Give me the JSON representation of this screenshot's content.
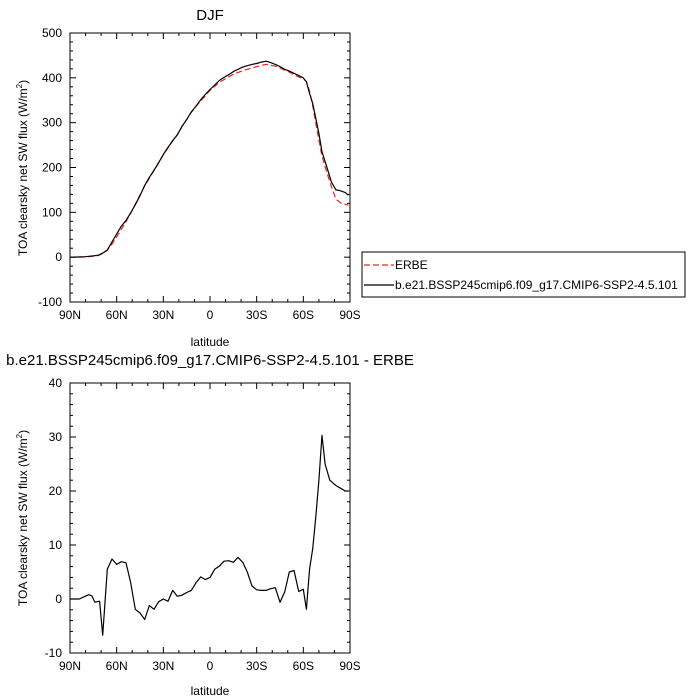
{
  "chart_data": [
    {
      "type": "line",
      "title": "DJF",
      "xlabel": "latitude",
      "ylabel": "TOA clearsky net SW flux (W/m",
      "ylabel_sup": "2",
      "ylabel_close": ")",
      "xlim": [
        90,
        -90
      ],
      "ylim": [
        -100,
        500
      ],
      "xticks": [
        90,
        60,
        30,
        0,
        -30,
        -60,
        -90
      ],
      "xtick_labels": [
        "90N",
        "60N",
        "30N",
        "0",
        "30S",
        "60S",
        "90S"
      ],
      "yticks": [
        -100,
        0,
        100,
        200,
        300,
        400,
        500
      ],
      "ytick_labels": [
        "-100",
        "0",
        "100",
        "200",
        "300",
        "400",
        "500"
      ],
      "legend_position": "right-outside",
      "series": [
        {
          "name": "ERBE",
          "color": "#e8261f",
          "dash": true,
          "x": [
            90,
            85,
            80,
            75,
            72,
            69,
            66,
            63,
            60,
            57,
            54,
            51,
            48,
            45,
            42,
            39,
            36,
            33,
            30,
            27,
            24,
            21,
            18,
            15,
            12,
            9,
            6,
            3,
            0,
            -3,
            -6,
            -9,
            -12,
            -15,
            -18,
            -21,
            -24,
            -27,
            -30,
            -33,
            -36,
            -39,
            -42,
            -45,
            -48,
            -51,
            -54,
            -57,
            -60,
            -62,
            -64,
            -66,
            -68,
            -70,
            -72,
            -75,
            -78,
            -81,
            -84,
            -87,
            -89
          ],
          "y": [
            0,
            0,
            0.5,
            2,
            4,
            8,
            16,
            29,
            45,
            62,
            79,
            98,
            118,
            139,
            159,
            176,
            193,
            210,
            228,
            244,
            259,
            273,
            291,
            307,
            323,
            336,
            349,
            360,
            372,
            381,
            390,
            396,
            402,
            408,
            412,
            416,
            419,
            422,
            425,
            428,
            430,
            428,
            426,
            422,
            417,
            413,
            407,
            402,
            398,
            392,
            370,
            338,
            299,
            261,
            225,
            190,
            158,
            129,
            121,
            118,
            116
          ]
        },
        {
          "name": "b.e21.BSSP245cmip6.f09_g17.CMIP6-SSP2-4.5.101",
          "color": "#000000",
          "dash": false,
          "x": [
            90,
            85,
            80,
            75,
            72,
            69,
            66,
            63,
            60,
            57,
            54,
            51,
            48,
            45,
            42,
            39,
            36,
            33,
            30,
            27,
            24,
            21,
            18,
            15,
            12,
            9,
            6,
            3,
            0,
            -3,
            -6,
            -9,
            -12,
            -15,
            -18,
            -21,
            -24,
            -27,
            -30,
            -33,
            -36,
            -39,
            -42,
            -45,
            -48,
            -51,
            -54,
            -57,
            -60,
            -62,
            -64,
            -66,
            -68,
            -70,
            -72,
            -75,
            -78,
            -81,
            -84,
            -87,
            -89
          ],
          "y": [
            0,
            0.3,
            1,
            3,
            4,
            9,
            16,
            34,
            52,
            69,
            82,
            99,
            117,
            137,
            160,
            178,
            194,
            211,
            229,
            245,
            260,
            273,
            292,
            307,
            324,
            337,
            351,
            363,
            374,
            384,
            394,
            401,
            407,
            414,
            419,
            424,
            427,
            430,
            432,
            435,
            437,
            434,
            430,
            425,
            419,
            415,
            410,
            405,
            400,
            391,
            365,
            343,
            310,
            276,
            235,
            202,
            168,
            150,
            148,
            144,
            138
          ]
        }
      ]
    },
    {
      "type": "line",
      "title": "b.e21.BSSP245cmip6.f09_g17.CMIP6-SSP2-4.5.101 - ERBE",
      "xlabel": "latitude",
      "ylabel": "TOA clearsky net SW flux (W/m",
      "ylabel_sup": "2",
      "ylabel_close": ")",
      "xlim": [
        90,
        -90
      ],
      "ylim": [
        -10,
        40
      ],
      "xticks": [
        90,
        60,
        30,
        0,
        -30,
        -60,
        -90
      ],
      "xtick_labels": [
        "90N",
        "60N",
        "30N",
        "0",
        "30S",
        "60S",
        "90S"
      ],
      "yticks": [
        -10,
        0,
        10,
        20,
        30,
        40
      ],
      "ytick_labels": [
        "-10",
        "0",
        "10",
        "20",
        "30",
        "40"
      ],
      "series": [
        {
          "color": "#000000",
          "dash": false,
          "x": [
            90,
            84,
            81,
            78,
            76,
            74,
            71,
            69,
            66,
            63,
            60,
            57,
            54,
            51,
            48,
            45,
            42,
            39,
            36,
            33,
            30,
            27,
            24,
            21,
            18,
            15,
            12,
            9,
            6,
            3,
            0,
            -3,
            -6,
            -9,
            -12,
            -15,
            -18,
            -21,
            -24,
            -27,
            -30,
            -33,
            -36,
            -39,
            -42,
            -45,
            -48,
            -51,
            -54,
            -57,
            -60,
            -62,
            -64,
            -66,
            -68,
            -70,
            -72,
            -74,
            -77,
            -81,
            -84,
            -87,
            -89
          ],
          "y": [
            0,
            0,
            0.4,
            0.8,
            0.6,
            -0.6,
            -0.4,
            -6.7,
            5.5,
            7.4,
            6.4,
            6.9,
            6.7,
            3,
            -1.9,
            -2.6,
            -3.8,
            -1.2,
            -1.9,
            -0.5,
            0,
            -0.4,
            1.6,
            0.5,
            0.7,
            1.2,
            1.6,
            3,
            4.1,
            3.6,
            4,
            5.5,
            6.1,
            7,
            7.1,
            6.8,
            7.7,
            6.8,
            5,
            2.4,
            1.7,
            1.6,
            1.6,
            1.9,
            2.1,
            -0.6,
            1.3,
            5,
            5.3,
            1.4,
            1.8,
            -1.9,
            5.6,
            9.3,
            15.2,
            22,
            30.3,
            25,
            22,
            21,
            20.5,
            20,
            20
          ]
        }
      ]
    }
  ]
}
